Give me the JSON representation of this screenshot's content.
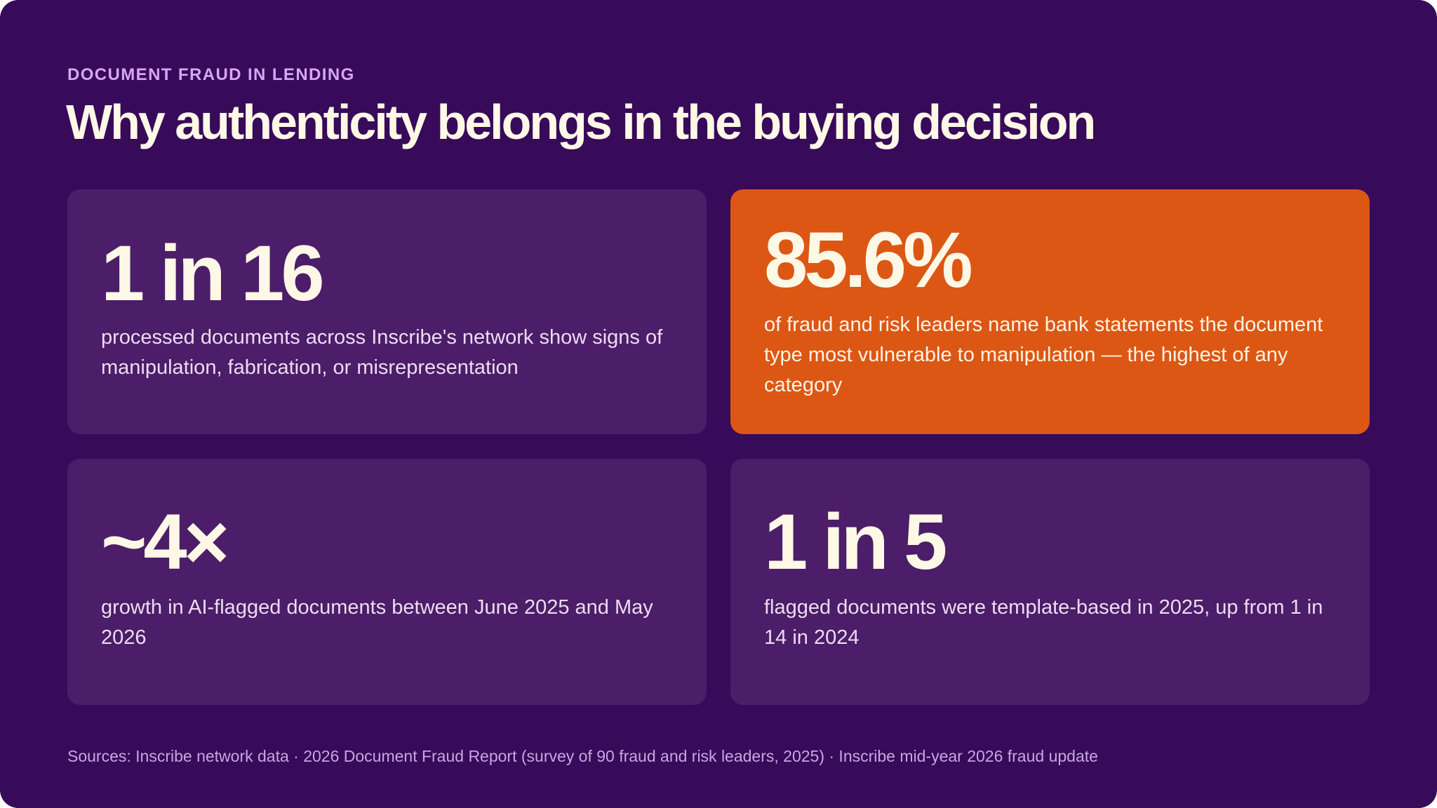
{
  "header": {
    "eyebrow": "DOCUMENT FRAUD IN LENDING",
    "title": "Why authenticity belongs in the buying decision"
  },
  "stats": [
    {
      "value": "1 in 16",
      "description": "processed documents across Inscribe's network show signs of manipulation, fabrication, or misrepresentation"
    },
    {
      "value": "85.6%",
      "description": "of fraud and risk leaders name bank statements the document type most vulnerable to manipulation — the highest of any category"
    },
    {
      "value": "~4×",
      "description": "growth in AI-flagged documents between June 2025 and May 2026"
    },
    {
      "value": "1 in 5",
      "description": "flagged documents were template-based in 2025, up from 1 in 14 in 2024"
    }
  ],
  "footer": {
    "sources": "Sources: Inscribe network data · 2026 Document Fraud Report (survey of 90 fraud and risk leaders, 2025) · Inscribe mid-year 2026 fraud update"
  },
  "colors": {
    "background": "#370a5a",
    "card": "#4c1d68",
    "accent_card": "#dc5714",
    "eyebrow": "#d9a6f2",
    "headline_text": "#fff8e6"
  }
}
